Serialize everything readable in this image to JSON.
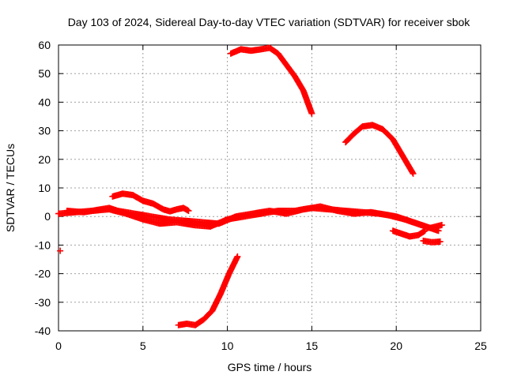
{
  "chart_data": {
    "type": "scatter",
    "title": "Day 103 of 2024, Sidereal Day-to-day VTEC variation (SDTVAR) for receiver sbok",
    "xlabel": "GPS time / hours",
    "ylabel": "SDTVAR / TECUs",
    "xlim": [
      0,
      25
    ],
    "ylim": [
      -40,
      60
    ],
    "xticks": [
      0,
      5,
      10,
      15,
      20,
      25
    ],
    "yticks": [
      -40,
      -30,
      -20,
      -10,
      0,
      10,
      20,
      30,
      40,
      50,
      60
    ],
    "grid": true,
    "marker": "+",
    "color": "#ff0000",
    "series": [
      {
        "name": "arc-main-band-a",
        "points": [
          [
            0.0,
            1.0
          ],
          [
            1,
            1.5
          ],
          [
            2,
            2
          ],
          [
            3,
            2.5
          ],
          [
            4,
            1
          ],
          [
            5,
            -1
          ],
          [
            6,
            -2.5
          ],
          [
            7,
            -2
          ],
          [
            8,
            -3
          ],
          [
            9,
            -3.5
          ],
          [
            10,
            -1
          ],
          [
            11,
            0
          ],
          [
            12,
            1
          ],
          [
            13,
            2
          ],
          [
            14,
            2
          ],
          [
            15,
            3
          ],
          [
            16,
            2.5
          ],
          [
            17,
            2
          ],
          [
            18,
            1.5
          ],
          [
            19,
            1
          ],
          [
            20,
            0
          ],
          [
            21,
            -2
          ],
          [
            22,
            -4
          ],
          [
            22.7,
            -3
          ]
        ]
      },
      {
        "name": "arc-main-band-b",
        "points": [
          [
            0.5,
            2
          ],
          [
            1.5,
            1.5
          ],
          [
            2.5,
            2.5
          ],
          [
            3,
            3
          ],
          [
            3.5,
            2
          ],
          [
            4.5,
            1
          ],
          [
            5.5,
            0
          ],
          [
            6.5,
            -1
          ],
          [
            7.5,
            -1.5
          ],
          [
            8.5,
            -2
          ],
          [
            9.5,
            -2.5
          ],
          [
            10.5,
            0
          ],
          [
            11.5,
            1
          ],
          [
            12.5,
            2
          ],
          [
            13.5,
            1
          ],
          [
            14.5,
            2.5
          ],
          [
            15.5,
            3.5
          ],
          [
            16.5,
            2
          ],
          [
            17.5,
            1
          ],
          [
            18.5,
            1.5
          ],
          [
            19.5,
            0.5
          ],
          [
            20.5,
            -1
          ],
          [
            21.5,
            -3
          ],
          [
            22.5,
            -5
          ]
        ]
      },
      {
        "name": "arc-hump-low",
        "points": [
          [
            3.2,
            7
          ],
          [
            3.8,
            8
          ],
          [
            4.4,
            7.5
          ],
          [
            5,
            5.5
          ],
          [
            5.6,
            4.5
          ],
          [
            6.2,
            2.5
          ],
          [
            6.6,
            1.8
          ],
          [
            7,
            2.5
          ],
          [
            7.4,
            3
          ],
          [
            7.7,
            2
          ]
        ]
      },
      {
        "name": "arc-dip-right",
        "points": [
          [
            19.8,
            -5
          ],
          [
            20.3,
            -6
          ],
          [
            20.8,
            -7
          ],
          [
            21.3,
            -6.5
          ],
          [
            21.7,
            -5
          ]
        ]
      },
      {
        "name": "arc-tail-right",
        "points": [
          [
            21.6,
            -8.5
          ],
          [
            22.1,
            -9
          ],
          [
            22.6,
            -8.8
          ]
        ]
      },
      {
        "name": "arc-top",
        "points": [
          [
            10.2,
            57
          ],
          [
            10.8,
            58.5
          ],
          [
            11.4,
            58
          ],
          [
            12,
            58.5
          ],
          [
            12.5,
            59
          ],
          [
            13,
            57
          ],
          [
            13.5,
            53
          ],
          [
            14,
            49
          ],
          [
            14.5,
            44
          ],
          [
            15,
            36
          ]
        ]
      },
      {
        "name": "arc-mid-right",
        "points": [
          [
            17,
            26
          ],
          [
            17.5,
            29
          ],
          [
            18,
            31.5
          ],
          [
            18.6,
            32
          ],
          [
            19.2,
            30.5
          ],
          [
            19.8,
            27
          ],
          [
            20.4,
            21
          ],
          [
            21,
            15
          ]
        ]
      },
      {
        "name": "arc-bottom",
        "points": [
          [
            7.1,
            -38
          ],
          [
            7.6,
            -37.5
          ],
          [
            8.1,
            -38
          ],
          [
            8.6,
            -36
          ],
          [
            9.1,
            -33
          ],
          [
            9.6,
            -27
          ],
          [
            10.1,
            -20
          ],
          [
            10.6,
            -14
          ]
        ]
      },
      {
        "name": "isolated-point",
        "points": [
          [
            0.1,
            -12
          ]
        ]
      }
    ]
  }
}
